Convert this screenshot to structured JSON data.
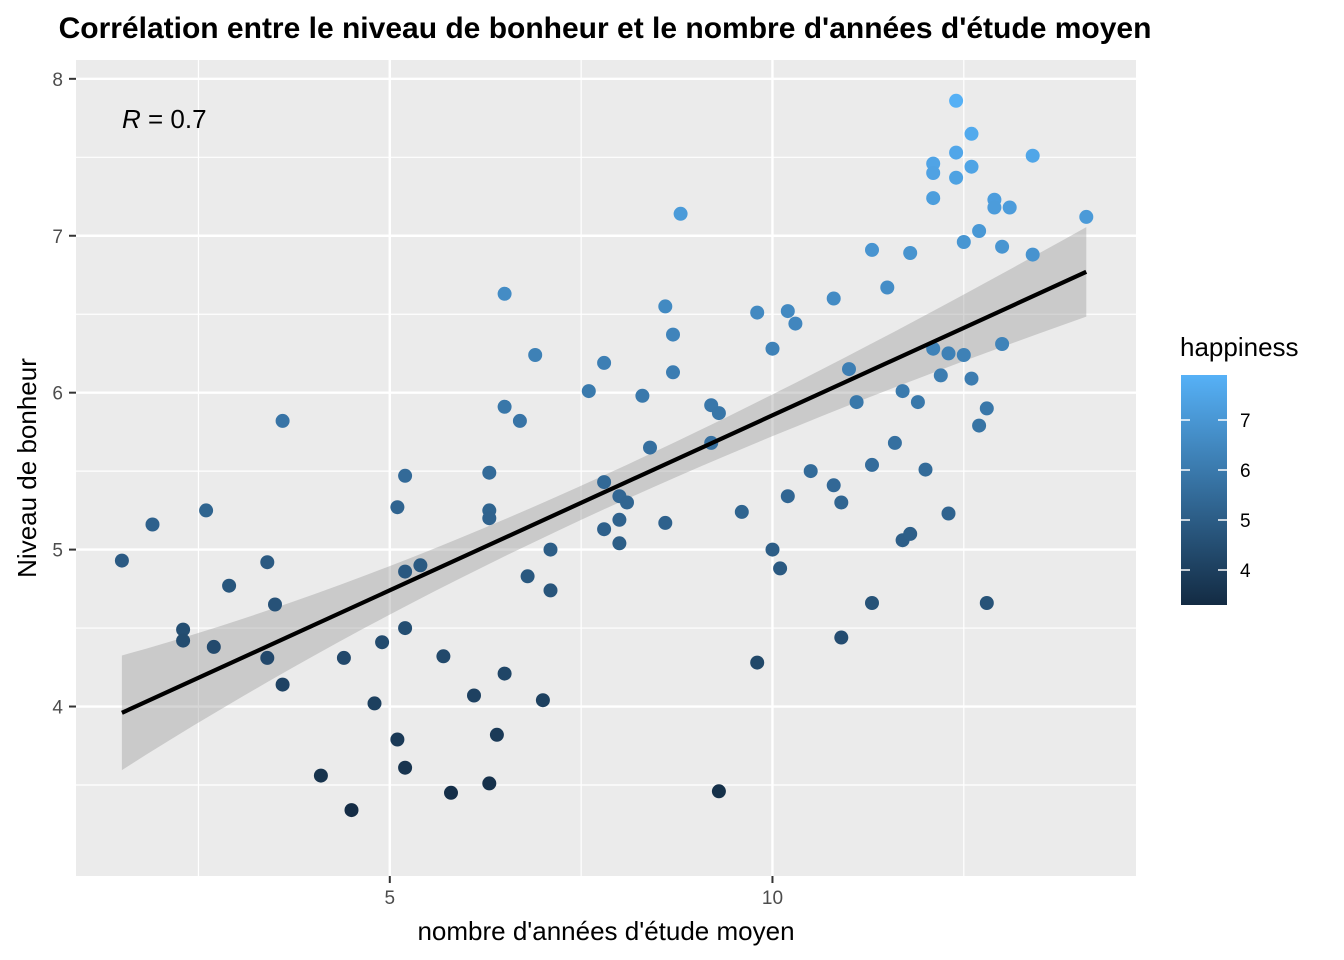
{
  "chart_data": {
    "type": "scatter",
    "title": "Corrélation entre le niveau de bonheur et le nombre d'années d'étude moyen",
    "xlabel": "nombre d'années d'étude moyen",
    "ylabel": "Niveau de bonheur",
    "xlim": [
      0.9,
      14.75
    ],
    "ylim": [
      2.92,
      8.12
    ],
    "x_ticks": [
      5,
      10
    ],
    "x_ticks_labels": [
      "5",
      "10"
    ],
    "y_ticks": [
      4,
      5,
      6,
      7,
      8
    ],
    "y_ticks_labels": [
      "4",
      "5",
      "6",
      "7",
      "8"
    ],
    "grid": true,
    "annotation": {
      "r_label": "R",
      "r_text": " = 0.7"
    },
    "legend": {
      "title": "happiness",
      "position": "right",
      "min": 3.3,
      "max": 7.9,
      "ticks": [
        4,
        5,
        6,
        7
      ],
      "tick_labels": [
        "4",
        "5",
        "6",
        "7"
      ],
      "color_low": "#132b43",
      "color_high": "#56b1f7"
    },
    "regression": {
      "x": [
        1.5,
        14.1
      ],
      "y": [
        3.96,
        6.77
      ],
      "ci_low": [
        3.6,
        6.49
      ],
      "ci_high": [
        4.33,
        7.06
      ],
      "color": "#000000",
      "band_color": "#999999"
    },
    "points": [
      {
        "x": 1.5,
        "y": 4.93
      },
      {
        "x": 1.9,
        "y": 5.16
      },
      {
        "x": 2.3,
        "y": 4.49
      },
      {
        "x": 2.3,
        "y": 4.42
      },
      {
        "x": 2.6,
        "y": 5.25
      },
      {
        "x": 2.7,
        "y": 4.38
      },
      {
        "x": 2.9,
        "y": 4.77
      },
      {
        "x": 3.4,
        "y": 4.92
      },
      {
        "x": 3.4,
        "y": 4.31
      },
      {
        "x": 3.5,
        "y": 4.65
      },
      {
        "x": 3.6,
        "y": 5.82
      },
      {
        "x": 3.6,
        "y": 4.14
      },
      {
        "x": 4.1,
        "y": 3.56
      },
      {
        "x": 4.4,
        "y": 4.31
      },
      {
        "x": 4.5,
        "y": 3.34
      },
      {
        "x": 4.8,
        "y": 4.02
      },
      {
        "x": 4.9,
        "y": 4.41
      },
      {
        "x": 5.1,
        "y": 5.27
      },
      {
        "x": 5.1,
        "y": 3.79
      },
      {
        "x": 5.2,
        "y": 5.47
      },
      {
        "x": 5.2,
        "y": 4.86
      },
      {
        "x": 5.2,
        "y": 4.5
      },
      {
        "x": 5.2,
        "y": 3.61
      },
      {
        "x": 5.4,
        "y": 4.9
      },
      {
        "x": 5.7,
        "y": 4.32
      },
      {
        "x": 5.8,
        "y": 3.45
      },
      {
        "x": 6.1,
        "y": 4.07
      },
      {
        "x": 6.3,
        "y": 5.49
      },
      {
        "x": 6.3,
        "y": 5.25
      },
      {
        "x": 6.3,
        "y": 5.2
      },
      {
        "x": 6.3,
        "y": 3.51
      },
      {
        "x": 6.4,
        "y": 3.82
      },
      {
        "x": 6.5,
        "y": 6.63
      },
      {
        "x": 6.5,
        "y": 5.91
      },
      {
        "x": 6.5,
        "y": 4.21
      },
      {
        "x": 6.7,
        "y": 5.82
      },
      {
        "x": 6.8,
        "y": 4.83
      },
      {
        "x": 6.9,
        "y": 6.24
      },
      {
        "x": 7.0,
        "y": 4.04
      },
      {
        "x": 7.1,
        "y": 5.0
      },
      {
        "x": 7.1,
        "y": 4.74
      },
      {
        "x": 7.6,
        "y": 6.01
      },
      {
        "x": 7.8,
        "y": 6.19
      },
      {
        "x": 7.8,
        "y": 5.43
      },
      {
        "x": 7.8,
        "y": 5.13
      },
      {
        "x": 8.0,
        "y": 5.34
      },
      {
        "x": 8.0,
        "y": 5.19
      },
      {
        "x": 8.0,
        "y": 5.04
      },
      {
        "x": 8.1,
        "y": 5.3
      },
      {
        "x": 8.3,
        "y": 5.98
      },
      {
        "x": 8.4,
        "y": 5.65
      },
      {
        "x": 8.6,
        "y": 6.55
      },
      {
        "x": 8.6,
        "y": 5.17
      },
      {
        "x": 8.7,
        "y": 6.37
      },
      {
        "x": 8.7,
        "y": 6.13
      },
      {
        "x": 8.8,
        "y": 7.14
      },
      {
        "x": 9.2,
        "y": 5.92
      },
      {
        "x": 9.2,
        "y": 5.68
      },
      {
        "x": 9.3,
        "y": 5.87
      },
      {
        "x": 9.3,
        "y": 3.46
      },
      {
        "x": 9.6,
        "y": 5.24
      },
      {
        "x": 9.8,
        "y": 6.51
      },
      {
        "x": 9.8,
        "y": 4.28
      },
      {
        "x": 10.0,
        "y": 6.28
      },
      {
        "x": 10.0,
        "y": 5.0
      },
      {
        "x": 10.1,
        "y": 4.88
      },
      {
        "x": 10.2,
        "y": 6.52
      },
      {
        "x": 10.2,
        "y": 5.34
      },
      {
        "x": 10.3,
        "y": 6.44
      },
      {
        "x": 10.5,
        "y": 5.5
      },
      {
        "x": 10.8,
        "y": 6.6
      },
      {
        "x": 10.8,
        "y": 5.41
      },
      {
        "x": 10.9,
        "y": 5.3
      },
      {
        "x": 10.9,
        "y": 4.44
      },
      {
        "x": 11.0,
        "y": 6.15
      },
      {
        "x": 11.1,
        "y": 5.94
      },
      {
        "x": 11.3,
        "y": 6.91
      },
      {
        "x": 11.3,
        "y": 5.54
      },
      {
        "x": 11.3,
        "y": 4.66
      },
      {
        "x": 11.5,
        "y": 6.67
      },
      {
        "x": 11.6,
        "y": 5.68
      },
      {
        "x": 11.7,
        "y": 6.01
      },
      {
        "x": 11.7,
        "y": 5.06
      },
      {
        "x": 11.8,
        "y": 6.89
      },
      {
        "x": 11.8,
        "y": 5.1
      },
      {
        "x": 11.9,
        "y": 5.94
      },
      {
        "x": 12.0,
        "y": 5.51
      },
      {
        "x": 12.1,
        "y": 7.46
      },
      {
        "x": 12.1,
        "y": 7.4
      },
      {
        "x": 12.1,
        "y": 7.24
      },
      {
        "x": 12.1,
        "y": 6.28
      },
      {
        "x": 12.2,
        "y": 6.11
      },
      {
        "x": 12.3,
        "y": 6.25
      },
      {
        "x": 12.3,
        "y": 5.23
      },
      {
        "x": 12.4,
        "y": 7.86
      },
      {
        "x": 12.4,
        "y": 7.53
      },
      {
        "x": 12.4,
        "y": 7.37
      },
      {
        "x": 12.5,
        "y": 6.96
      },
      {
        "x": 12.5,
        "y": 6.24
      },
      {
        "x": 12.6,
        "y": 7.65
      },
      {
        "x": 12.6,
        "y": 7.44
      },
      {
        "x": 12.6,
        "y": 6.09
      },
      {
        "x": 12.7,
        "y": 7.03
      },
      {
        "x": 12.7,
        "y": 5.79
      },
      {
        "x": 12.8,
        "y": 5.9
      },
      {
        "x": 12.8,
        "y": 4.66
      },
      {
        "x": 12.9,
        "y": 7.23
      },
      {
        "x": 12.9,
        "y": 7.18
      },
      {
        "x": 13.0,
        "y": 6.93
      },
      {
        "x": 13.0,
        "y": 6.31
      },
      {
        "x": 13.1,
        "y": 7.18
      },
      {
        "x": 13.4,
        "y": 7.51
      },
      {
        "x": 13.4,
        "y": 6.88
      },
      {
        "x": 14.1,
        "y": 7.12
      }
    ]
  }
}
